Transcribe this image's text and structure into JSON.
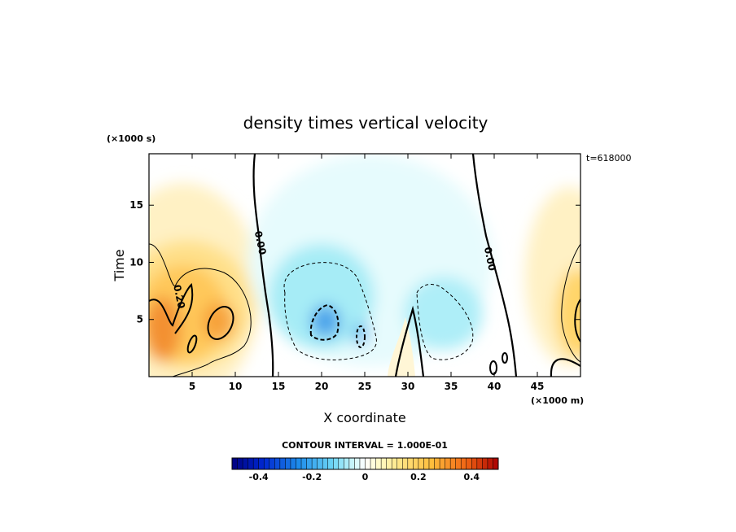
{
  "chart_data": {
    "type": "heatmap",
    "title": "density times vertical velocity",
    "xlabel": "X coordinate",
    "ylabel": "Time",
    "x_unit": "(×1000 m)",
    "y_unit": "(×1000 s)",
    "time_label": "t=618000",
    "xlim": [
      0,
      50
    ],
    "ylim": [
      0,
      19.5
    ],
    "x_ticks": [
      5,
      10,
      15,
      20,
      25,
      30,
      35,
      40,
      45
    ],
    "y_ticks": [
      5,
      10,
      15
    ],
    "contour_interval_label": "CONTOUR INTERVAL = 1.000E-01",
    "contour_labels": [
      {
        "text": "0.20",
        "x": 3.5,
        "y": 7.0
      },
      {
        "text": "0.00",
        "x": 12.9,
        "y": 11.7
      },
      {
        "text": "0.00",
        "x": 39.5,
        "y": 10.3
      }
    ],
    "colorbar": {
      "range": [
        -0.5,
        0.5
      ],
      "ticks": [
        -0.4,
        -0.2,
        0,
        0.2,
        0.4
      ],
      "tick_labels": [
        "-0.4",
        "-0.2",
        "0",
        "0.2",
        "0.4"
      ]
    }
  }
}
